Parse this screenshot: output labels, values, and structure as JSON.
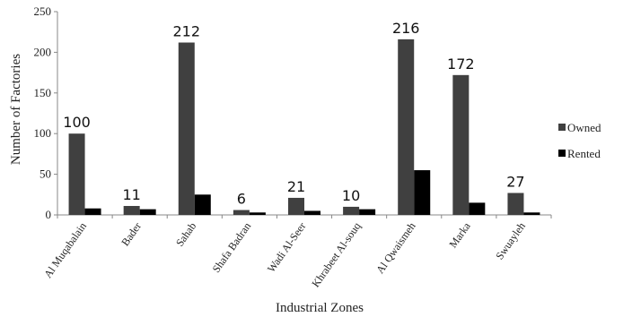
{
  "chart_data": {
    "type": "bar",
    "title": "",
    "xlabel": "Industrial Zones",
    "ylabel": "Number of Factories",
    "ylim": [
      0,
      250
    ],
    "yticks": [
      0,
      50,
      100,
      150,
      200,
      250
    ],
    "grid": false,
    "legend_position": "right",
    "categories": [
      "Al Muqabalain",
      "Bader",
      "Sahab",
      "Shafa Badran",
      "Wadi Al-Seer",
      "Khrabeet Al-souq",
      "Al Qwaismeh",
      "Marka",
      "Swuayleh"
    ],
    "series": [
      {
        "name": "Owned",
        "values": [
          100,
          11,
          212,
          6,
          21,
          10,
          216,
          172,
          27
        ],
        "color": "#404040"
      },
      {
        "name": "Rented",
        "values": [
          8,
          7,
          25,
          3,
          5,
          7,
          55,
          15,
          3
        ],
        "color": "#000000"
      }
    ],
    "data_labels": [
      "100",
      "11",
      "212",
      "6",
      "21",
      "10",
      "216",
      "172",
      "27"
    ]
  }
}
